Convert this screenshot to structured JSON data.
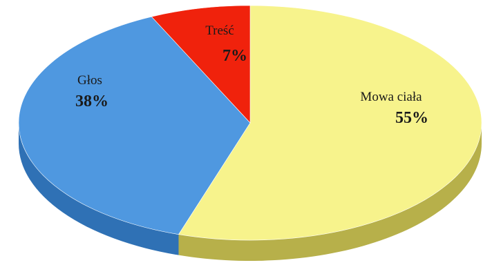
{
  "chart_data": {
    "type": "pie",
    "style": "3d",
    "title": "",
    "legend": "none",
    "slices": [
      {
        "label": "Mowa ciała",
        "value": 55,
        "value_label": "55%",
        "color": "#f7f38c",
        "side_color": "#b7b04a"
      },
      {
        "label": "Głos",
        "value": 38,
        "value_label": "38%",
        "color": "#4f98e0",
        "side_color": "#2f71b5"
      },
      {
        "label": "Treść",
        "value": 7,
        "value_label": "7%",
        "color": "#f0220c",
        "side_color": "#a8140a"
      }
    ]
  }
}
